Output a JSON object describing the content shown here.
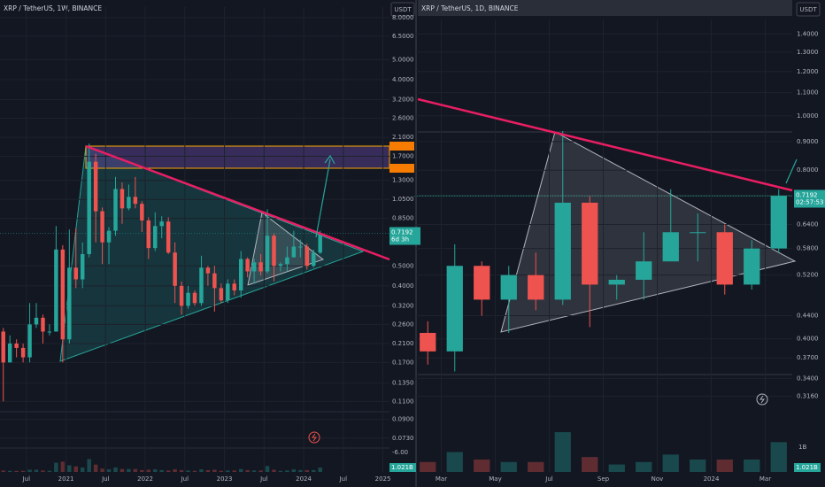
{
  "chart_data": [
    {
      "type": "candlestick",
      "title": "XRP / TetherUS, 1W, BINANCE",
      "quote": "USDT",
      "log_scale": true,
      "grid": true,
      "up_color": "#26a69a",
      "down_color": "#ef5350",
      "categories": [
        "2020-03",
        "2020-04",
        "2020-05",
        "2020-06",
        "2020-07",
        "2020-08",
        "2020-09",
        "2020-10",
        "2020-11",
        "2020-12",
        "2021-01",
        "2021-02",
        "2021-03",
        "2021-04",
        "2021-05",
        "2021-06",
        "2021-07",
        "2021-08",
        "2021-09",
        "2021-10",
        "2021-11",
        "2021-12",
        "2022-01",
        "2022-02",
        "2022-03",
        "2022-04",
        "2022-05",
        "2022-06",
        "2022-07",
        "2022-08",
        "2022-09",
        "2022-10",
        "2022-11",
        "2022-12",
        "2023-01",
        "2023-02",
        "2023-03",
        "2023-04",
        "2023-05",
        "2023-06",
        "2023-07",
        "2023-08",
        "2023-09",
        "2023-10",
        "2023-11",
        "2023-12",
        "2024-01",
        "2024-02",
        "2024-03"
      ],
      "open": [
        0.24,
        0.17,
        0.21,
        0.2,
        0.18,
        0.26,
        0.28,
        0.24,
        0.24,
        0.6,
        0.22,
        0.49,
        0.43,
        0.57,
        1.6,
        0.92,
        0.65,
        0.74,
        1.18,
        0.95,
        1.08,
        1.0,
        0.83,
        0.61,
        0.78,
        0.82,
        0.58,
        0.4,
        0.32,
        0.37,
        0.33,
        0.49,
        0.46,
        0.39,
        0.34,
        0.41,
        0.38,
        0.54,
        0.47,
        0.52,
        0.47,
        0.7,
        0.5,
        0.51,
        0.55,
        0.62,
        0.62,
        0.5,
        0.58
      ],
      "high": [
        0.25,
        0.23,
        0.22,
        0.21,
        0.33,
        0.33,
        0.29,
        0.26,
        0.78,
        0.63,
        0.75,
        0.76,
        0.65,
        1.96,
        1.75,
        0.96,
        0.77,
        1.35,
        1.27,
        1.24,
        1.35,
        1.03,
        0.86,
        0.91,
        0.87,
        0.86,
        0.65,
        0.42,
        0.4,
        0.38,
        0.56,
        0.5,
        0.5,
        0.41,
        0.43,
        0.43,
        0.59,
        0.55,
        0.54,
        0.57,
        0.94,
        0.72,
        0.52,
        0.62,
        0.74,
        0.67,
        0.64,
        0.6,
        0.74
      ],
      "low": [
        0.11,
        0.17,
        0.18,
        0.17,
        0.17,
        0.25,
        0.21,
        0.23,
        0.24,
        0.17,
        0.21,
        0.39,
        0.39,
        0.55,
        0.65,
        0.51,
        0.51,
        0.7,
        0.8,
        0.93,
        0.95,
        0.73,
        0.54,
        0.59,
        0.68,
        0.57,
        0.33,
        0.29,
        0.31,
        0.32,
        0.32,
        0.4,
        0.3,
        0.33,
        0.33,
        0.36,
        0.35,
        0.44,
        0.41,
        0.45,
        0.46,
        0.42,
        0.47,
        0.47,
        0.55,
        0.55,
        0.48,
        0.49,
        0.57
      ],
      "close": [
        0.17,
        0.21,
        0.2,
        0.18,
        0.26,
        0.28,
        0.24,
        0.24,
        0.6,
        0.22,
        0.49,
        0.43,
        0.57,
        1.6,
        0.92,
        0.65,
        0.74,
        1.18,
        0.95,
        1.08,
        1.0,
        0.83,
        0.61,
        0.78,
        0.82,
        0.58,
        0.4,
        0.32,
        0.37,
        0.33,
        0.49,
        0.46,
        0.39,
        0.34,
        0.41,
        0.38,
        0.54,
        0.47,
        0.52,
        0.47,
        0.7,
        0.5,
        0.51,
        0.55,
        0.62,
        0.62,
        0.5,
        0.58,
        0.72
      ],
      "xlim": [
        "2020-03",
        "2025-02"
      ],
      "xticks": [
        {
          "value": "2020-07",
          "label": "Jul"
        },
        {
          "value": "2021-01",
          "label": "2021"
        },
        {
          "value": "2021-07",
          "label": "Jul"
        },
        {
          "value": "2022-01",
          "label": "2022"
        },
        {
          "value": "2022-07",
          "label": "Jul"
        },
        {
          "value": "2023-01",
          "label": "2023"
        },
        {
          "value": "2023-07",
          "label": "Jul"
        },
        {
          "value": "2024-01",
          "label": "2024"
        },
        {
          "value": "2024-07",
          "label": "Jul"
        },
        {
          "value": "2025-01",
          "label": "2025"
        }
      ],
      "ylim": [
        0.066,
        9.0
      ],
      "yticks": [
        {
          "value": 8,
          "label": "8.0000"
        },
        {
          "value": 6.5,
          "label": "6.5000"
        },
        {
          "value": 5,
          "label": "5.0000"
        },
        {
          "value": 4,
          "label": "4.0000"
        },
        {
          "value": 3.2,
          "label": "3.2000"
        },
        {
          "value": 2.6,
          "label": "2.6000"
        },
        {
          "value": 2.1,
          "label": "2.1000"
        },
        {
          "value": 1.7,
          "label": "1.7000"
        },
        {
          "value": 1.3,
          "label": "1.3000"
        },
        {
          "value": 1.05,
          "label": "1.0500"
        },
        {
          "value": 0.85,
          "label": "0.8500"
        },
        {
          "value": 0.5,
          "label": "0.5000"
        },
        {
          "value": 0.4,
          "label": "0.4000"
        },
        {
          "value": 0.32,
          "label": "0.3200"
        },
        {
          "value": 0.26,
          "label": "0.2600"
        },
        {
          "value": 0.21,
          "label": "0.2100"
        },
        {
          "value": 0.17,
          "label": "0.1700"
        },
        {
          "value": 0.135,
          "label": "0.1350"
        },
        {
          "value": 0.11,
          "label": "0.1100"
        },
        {
          "value": 0.09,
          "label": "0.0900"
        },
        {
          "value": 0.073,
          "label": "0.0730"
        }
      ],
      "last_price": 0.7192,
      "countdown": "6d 3h",
      "indicator_ticks": [
        {
          "value": -6,
          "label": "-6.00"
        }
      ],
      "volume": {
        "values": [
          0.4,
          0.3,
          0.3,
          0.3,
          0.6,
          0.6,
          0.4,
          0.3,
          2.5,
          2.8,
          1.8,
          1.5,
          1.2,
          3.5,
          2.0,
          0.9,
          0.7,
          1.2,
          0.8,
          0.8,
          0.8,
          0.5,
          0.6,
          0.7,
          0.5,
          0.4,
          0.7,
          0.5,
          0.4,
          0.3,
          0.7,
          0.5,
          0.6,
          0.3,
          0.4,
          0.4,
          0.8,
          0.5,
          0.4,
          0.4,
          1.6,
          0.6,
          0.3,
          0.4,
          0.7,
          0.5,
          0.5,
          0.5,
          1.2
        ],
        "ylim": [
          0,
          6
        ],
        "badge": "1.021B"
      }
    },
    {
      "type": "candlestick",
      "title": "XRP / TetherUS, 1D, BINANCE",
      "quote": "USDT",
      "log_scale": true,
      "grid": true,
      "up_color": "#26a69a",
      "down_color": "#ef5350",
      "categories": [
        "2023-02",
        "2023-03",
        "2023-04",
        "2023-05",
        "2023-06",
        "2023-07",
        "2023-08",
        "2023-09",
        "2023-10",
        "2023-11",
        "2023-12",
        "2024-01",
        "2024-02",
        "2024-03"
      ],
      "open": [
        0.41,
        0.38,
        0.54,
        0.47,
        0.52,
        0.47,
        0.7,
        0.5,
        0.51,
        0.55,
        0.62,
        0.62,
        0.5,
        0.58
      ],
      "high": [
        0.43,
        0.59,
        0.55,
        0.54,
        0.57,
        0.94,
        0.72,
        0.52,
        0.62,
        0.74,
        0.67,
        0.64,
        0.6,
        0.74
      ],
      "low": [
        0.36,
        0.35,
        0.44,
        0.41,
        0.45,
        0.46,
        0.42,
        0.47,
        0.47,
        0.55,
        0.55,
        0.48,
        0.49,
        0.57
      ],
      "close": [
        0.38,
        0.54,
        0.47,
        0.52,
        0.47,
        0.7,
        0.5,
        0.51,
        0.55,
        0.62,
        0.62,
        0.5,
        0.58,
        0.72
      ],
      "xlim": [
        "2023-02",
        "2024-04"
      ],
      "xticks": [
        {
          "value": "2023-03",
          "label": "Mar"
        },
        {
          "value": "2023-05",
          "label": "May"
        },
        {
          "value": "2023-07",
          "label": "Jul"
        },
        {
          "value": "2023-09",
          "label": "Sep"
        },
        {
          "value": "2023-11",
          "label": "Nov"
        },
        {
          "value": "2024-01",
          "label": "2024"
        },
        {
          "value": "2024-03",
          "label": "Mar"
        }
      ],
      "ylim": [
        0.302,
        1.486
      ],
      "yticks": [
        {
          "value": 1.4,
          "label": "1.4000"
        },
        {
          "value": 1.3,
          "label": "1.3000"
        },
        {
          "value": 1.2,
          "label": "1.2000"
        },
        {
          "value": 1.1,
          "label": "1.1000"
        },
        {
          "value": 1,
          "label": "1.0000"
        },
        {
          "value": 0.9,
          "label": "0.9000"
        },
        {
          "value": 0.8,
          "label": "0.8000"
        },
        {
          "value": 0.64,
          "label": "0.6400"
        },
        {
          "value": 0.58,
          "label": "0.5800"
        },
        {
          "value": 0.52,
          "label": "0.5200"
        },
        {
          "value": 0.44,
          "label": "0.4400"
        },
        {
          "value": 0.4,
          "label": "0.4000"
        },
        {
          "value": 0.37,
          "label": "0.3700"
        },
        {
          "value": 0.34,
          "label": "0.3400"
        },
        {
          "value": 0.316,
          "label": "0.3160"
        }
      ],
      "last_price": 0.7192,
      "countdown": "02:57:53",
      "volume": {
        "values": [
          0.4,
          0.8,
          0.5,
          0.4,
          0.4,
          1.6,
          0.6,
          0.3,
          0.4,
          0.7,
          0.5,
          0.5,
          0.5,
          1.2
        ],
        "ylim": [
          0,
          2.6
        ],
        "yticks": [
          {
            "value": 1,
            "label": "1B"
          }
        ],
        "badge": "1.021B"
      }
    }
  ]
}
